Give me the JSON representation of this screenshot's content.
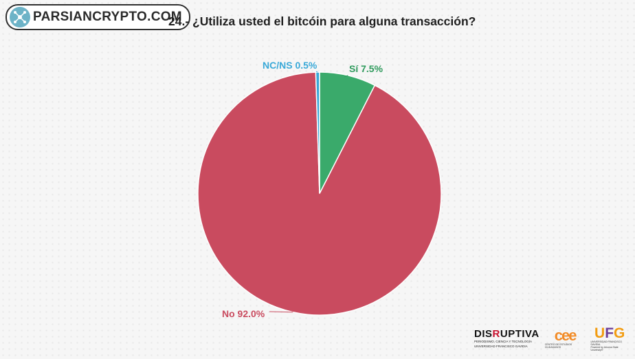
{
  "header": {
    "brand": "PARSIANCRYPTO.COM",
    "title": "24.- ¿Utiliza usted el bitcóin para alguna transacción?"
  },
  "chart_data": {
    "type": "pie",
    "title": "24.- ¿Utiliza usted el bitcóin para alguna transacción?",
    "slices": [
      {
        "label": "Sí",
        "value": 7.5,
        "display": "Sí 7.5%",
        "color": "#3aaa6b",
        "label_color": "#2e9a5c"
      },
      {
        "label": "No",
        "value": 92.0,
        "display": "No 92.0%",
        "color": "#c94b5f",
        "label_color": "#c94b5f"
      },
      {
        "label": "NC/NS",
        "value": 0.5,
        "display": "NC/NS 0.5%",
        "color": "#3aa9d8",
        "label_color": "#3aa9d8"
      }
    ]
  },
  "footer": {
    "disruptiva_prefix": "DIS",
    "disruptiva_r": "R",
    "disruptiva_suffix": "UPTIVA",
    "disruptiva_sub1": "PERIODISMO, CIENCIA Y TECNOLOGÍA",
    "disruptiva_sub2": "UNIVERSIDAD FRANCISCO GAVIDIA",
    "cee_mark": "cee",
    "cee_sub": "CENTRO DE ESTUDIOS CIUDADANOS",
    "ufg_u": "U",
    "ufg_f": "F",
    "ufg_g": "G",
    "ufg_sub1": "UNIVERSIDAD FRANCISCO GAVIDIA",
    "ufg_sub2": "Powered by Arizona State University®"
  }
}
